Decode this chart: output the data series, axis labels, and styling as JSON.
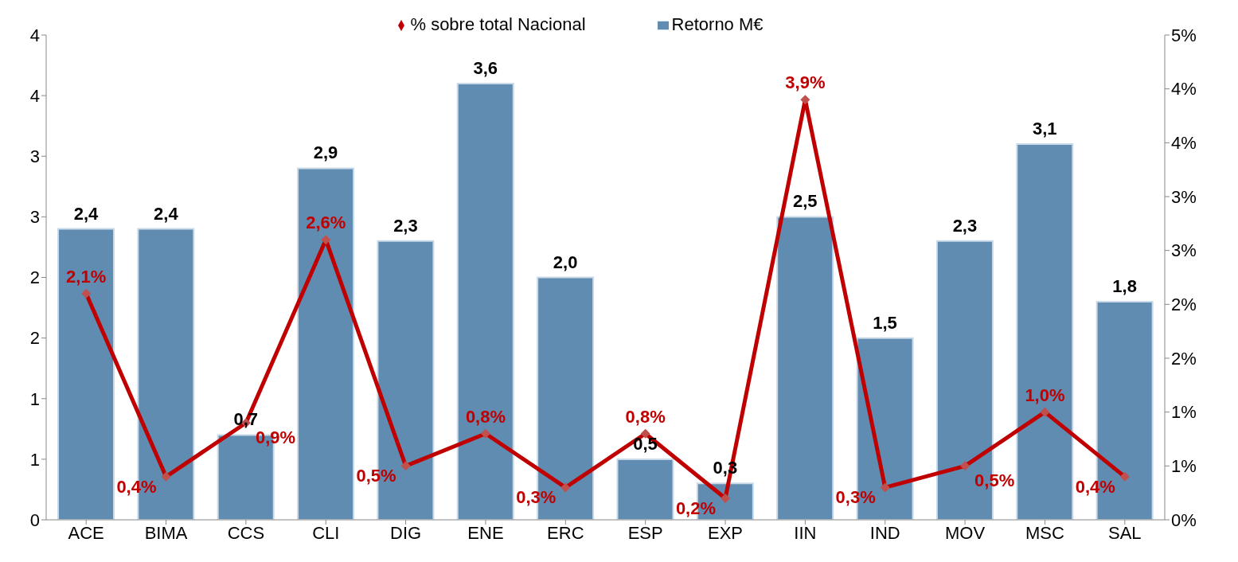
{
  "chart_data": {
    "type": "bar",
    "categories": [
      "ACE",
      "BIMA",
      "CCS",
      "CLI",
      "DIG",
      "ENE",
      "ERC",
      "ESP",
      "EXP",
      "IIN",
      "IND",
      "MOV",
      "MSC",
      "SAL"
    ],
    "series": [
      {
        "name": "Retorno M€",
        "color": "#5f8cb0",
        "values": [
          2.4,
          2.4,
          0.7,
          2.9,
          2.3,
          3.6,
          2.0,
          0.5,
          0.3,
          2.5,
          1.5,
          2.3,
          3.1,
          1.8
        ],
        "value_labels": [
          "2,4",
          "2,4",
          "0,7",
          "2,9",
          "2,3",
          "3,6",
          "2,0",
          "0,5",
          "0,3",
          "2,5",
          "1,5",
          "2,3",
          "3,1",
          "1,8"
        ]
      },
      {
        "name": "% sobre total Nacional",
        "type": "line",
        "axis": "y2",
        "color": "#c00000",
        "values": [
          2.1,
          0.4,
          0.9,
          2.6,
          0.5,
          0.8,
          0.3,
          0.8,
          0.2,
          3.9,
          0.3,
          0.5,
          1.0,
          0.4
        ],
        "value_labels": [
          "2,1%",
          "0,4%",
          "0,9%",
          "2,6%",
          "0,5%",
          "0,8%",
          "0,3%",
          "0,8%",
          "0,2%",
          "3,9%",
          "0,3%",
          "0,5%",
          "1,0%",
          "0,4%"
        ]
      }
    ],
    "ylim": [
      0,
      4
    ],
    "yticks": [
      0,
      {
        "value": 0.5,
        "label": "1"
      },
      1,
      {
        "value": 1.5,
        "label": "2"
      },
      2,
      {
        "value": 2.5,
        "label": "3"
      },
      3,
      {
        "value": 3.5,
        "label": "4"
      },
      4
    ],
    "y2lim": [
      0,
      4.5
    ],
    "y2ticks": [
      {
        "value": 0,
        "label": "0%"
      },
      {
        "value": 0.5,
        "label": "1%"
      },
      {
        "value": 1,
        "label": "1%"
      },
      {
        "value": 1.5,
        "label": "2%"
      },
      {
        "value": 2,
        "label": "2%"
      },
      {
        "value": 2.5,
        "label": "3%"
      },
      {
        "value": 3,
        "label": "3%"
      },
      {
        "value": 3.5,
        "label": "4%"
      },
      {
        "value": 4,
        "label": "4%"
      },
      {
        "value": 4.5,
        "label": "5%"
      }
    ],
    "grid": false,
    "legend": "top",
    "marker": "diamond",
    "line_style": "solid"
  }
}
